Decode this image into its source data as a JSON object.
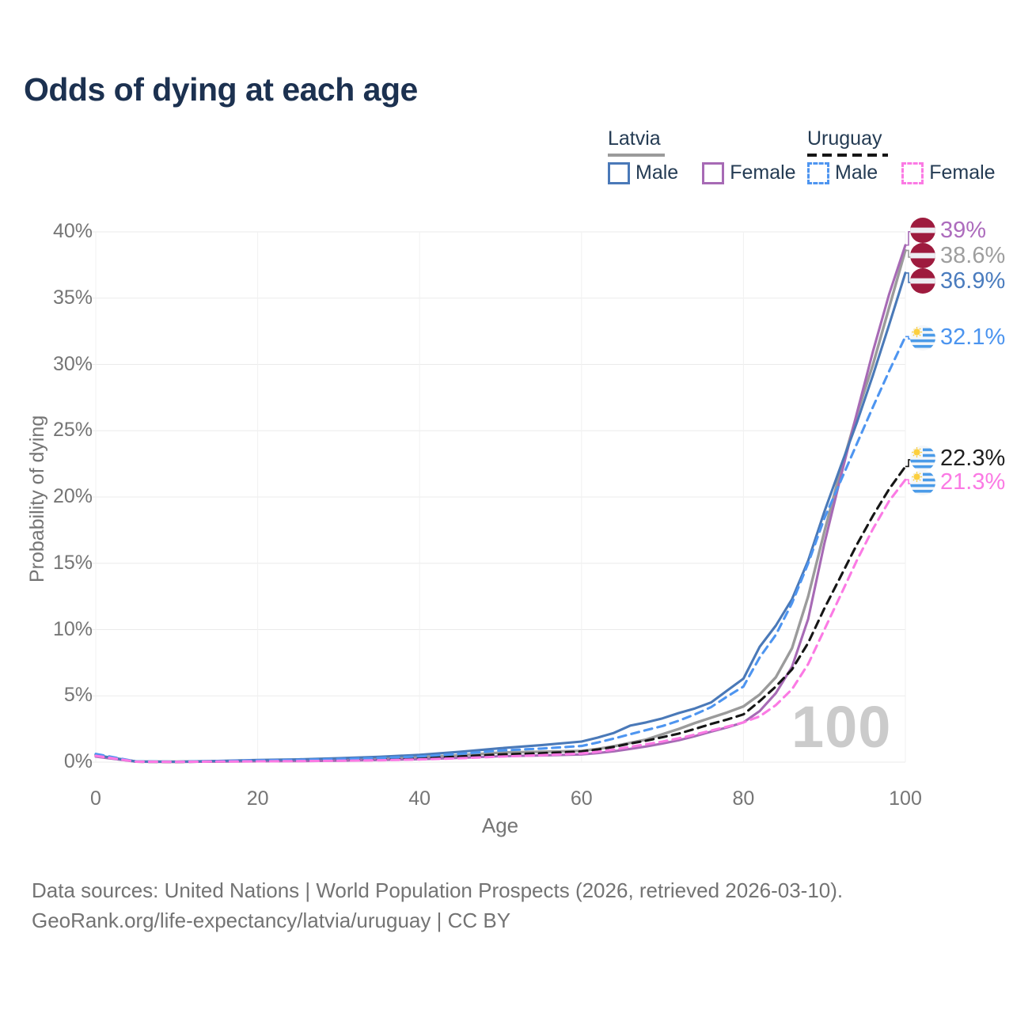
{
  "title": "Odds of dying at each age",
  "legend": {
    "groups": [
      {
        "label": "Latvia",
        "line_style": "solid",
        "rule_color": "#9b9b9b",
        "items": [
          {
            "label": "Male"
          },
          {
            "label": "Female"
          }
        ]
      },
      {
        "label": "Uruguay",
        "line_style": "dashed",
        "rule_color": "#161616",
        "items": [
          {
            "label": "Male"
          },
          {
            "label": "Female"
          }
        ]
      }
    ]
  },
  "watermark_age": "100",
  "footer": {
    "line1": "Data sources: United Nations | World Population Prospects (2026, retrieved 2026-03-10).",
    "line2": "GeoRank.org/life-expectancy/latvia/uruguay | CC BY"
  },
  "chart_data": {
    "type": "line",
    "title": "Odds of dying at each age",
    "xlabel": "Age",
    "ylabel": "Probability of dying",
    "xlim": [
      0,
      100
    ],
    "ylim": [
      0,
      40
    ],
    "x_ticks": [
      0,
      20,
      40,
      60,
      80,
      100
    ],
    "y_ticks": [
      0,
      5,
      10,
      15,
      20,
      25,
      30,
      35,
      40
    ],
    "y_tick_labels": [
      "0%",
      "5%",
      "10%",
      "15%",
      "20%",
      "25%",
      "30%",
      "35%",
      "40%"
    ],
    "grid": true,
    "legend_position": "top-right",
    "ages": [
      0,
      5,
      10,
      15,
      20,
      25,
      30,
      35,
      40,
      45,
      50,
      55,
      60,
      62,
      64,
      66,
      68,
      70,
      72,
      74,
      76,
      78,
      80,
      82,
      84,
      86,
      88,
      90,
      92,
      94,
      96,
      98,
      100
    ],
    "series": [
      {
        "name": "Latvia Both",
        "country": "Latvia",
        "flag": "lv",
        "dash": "solid",
        "color": "#9b9b9b",
        "label_color": "#9e9e9e",
        "end_label": "38.6%",
        "values": [
          0.48,
          0.04,
          0.03,
          0.07,
          0.11,
          0.14,
          0.19,
          0.26,
          0.36,
          0.52,
          0.72,
          0.78,
          0.85,
          1.0,
          1.2,
          1.45,
          1.7,
          2.1,
          2.5,
          2.95,
          3.35,
          3.75,
          4.2,
          5.1,
          6.4,
          8.6,
          12.5,
          17.4,
          22.0,
          26.2,
          30.0,
          34.3,
          38.6
        ]
      },
      {
        "name": "Latvia Female",
        "country": "Latvia",
        "flag": "lv",
        "dash": "solid",
        "color": "#a76ab5",
        "label_color": "#ad6cbd",
        "end_label": "39%",
        "values": [
          0.42,
          0.03,
          0.02,
          0.04,
          0.06,
          0.08,
          0.11,
          0.16,
          0.22,
          0.32,
          0.45,
          0.5,
          0.58,
          0.68,
          0.82,
          1.0,
          1.18,
          1.4,
          1.65,
          1.95,
          2.3,
          2.62,
          3.0,
          3.85,
          5.2,
          7.2,
          10.8,
          16.5,
          21.5,
          26.3,
          31.0,
          35.3,
          39.0
        ]
      },
      {
        "name": "Latvia Male",
        "country": "Latvia",
        "flag": "lv",
        "dash": "solid",
        "color": "#4a79b8",
        "label_color": "#4a7cbe",
        "end_label": "36.9%",
        "values": [
          0.52,
          0.05,
          0.03,
          0.09,
          0.16,
          0.21,
          0.29,
          0.4,
          0.55,
          0.78,
          1.05,
          1.28,
          1.55,
          1.85,
          2.2,
          2.75,
          3.0,
          3.3,
          3.7,
          4.05,
          4.5,
          5.4,
          6.3,
          8.7,
          10.3,
          12.3,
          15.2,
          18.9,
          22.3,
          25.6,
          29.2,
          33.0,
          36.9
        ]
      },
      {
        "name": "Uruguay Both",
        "country": "Uruguay",
        "flag": "uy",
        "dash": "dashed",
        "color": "#161616",
        "label_color": "#1f1f1f",
        "end_label": "22.3%",
        "values": [
          0.55,
          0.03,
          0.02,
          0.05,
          0.1,
          0.13,
          0.16,
          0.22,
          0.3,
          0.43,
          0.58,
          0.67,
          0.8,
          0.95,
          1.15,
          1.4,
          1.62,
          1.88,
          2.15,
          2.5,
          2.88,
          3.22,
          3.6,
          4.6,
          5.7,
          7.0,
          9.0,
          11.6,
          14.0,
          16.4,
          18.6,
          20.6,
          22.3
        ]
      },
      {
        "name": "Uruguay Male",
        "country": "Uruguay",
        "flag": "uy",
        "dash": "dashed",
        "color": "#4e95f0",
        "label_color": "#4b94ef",
        "end_label": "32.1%",
        "values": [
          0.62,
          0.04,
          0.03,
          0.07,
          0.13,
          0.17,
          0.23,
          0.31,
          0.43,
          0.62,
          0.88,
          1.02,
          1.22,
          1.48,
          1.78,
          2.1,
          2.42,
          2.72,
          3.12,
          3.6,
          4.15,
          4.95,
          5.7,
          7.9,
          9.6,
          12.0,
          15.0,
          18.4,
          21.2,
          24.0,
          26.8,
          29.5,
          32.1
        ]
      },
      {
        "name": "Uruguay Female",
        "country": "Uruguay",
        "flag": "uy",
        "dash": "dashed",
        "color": "#fb7ae4",
        "label_color": "#fb7ae4",
        "end_label": "21.3%",
        "values": [
          0.48,
          0.03,
          0.02,
          0.04,
          0.06,
          0.08,
          0.1,
          0.14,
          0.2,
          0.29,
          0.42,
          0.52,
          0.65,
          0.78,
          0.95,
          1.15,
          1.35,
          1.55,
          1.8,
          2.08,
          2.38,
          2.68,
          3.0,
          3.45,
          4.3,
          5.5,
          7.4,
          10.0,
          12.6,
          15.2,
          17.6,
          19.7,
          21.3
        ]
      }
    ]
  }
}
